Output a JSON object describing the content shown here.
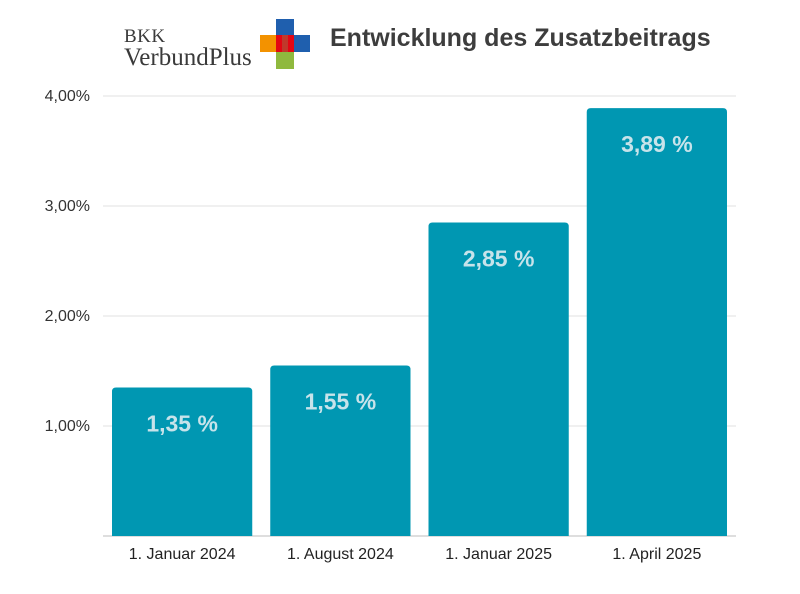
{
  "brand": {
    "line1": "BKK",
    "line2": "VerbundPlus",
    "logo_icon": "cross-plus-icon"
  },
  "colors": {
    "bar": "#0097b2",
    "grid": "#e2e2e2",
    "baseline": "#bdbdbd",
    "data_label": "#c7e3ea",
    "logo_orange": "#f39200",
    "logo_red": "#e30613",
    "logo_blue": "#1f5fae",
    "logo_green": "#8fb93e"
  },
  "chart_data": {
    "type": "bar",
    "title": "Entwicklung des Zusatzbeitrags",
    "xlabel": "",
    "ylabel": "",
    "categories": [
      "1. Januar 2024",
      "1. August 2024",
      "1. Januar 2025",
      "1. April 2025"
    ],
    "values": [
      1.35,
      1.55,
      2.85,
      3.89
    ],
    "data_labels": [
      "1,35 %",
      "1,55 %",
      "2,85 %",
      "3,89 %"
    ],
    "ylim": [
      0,
      4
    ],
    "yticks": [
      1,
      2,
      3,
      4
    ],
    "ytick_labels": [
      "1,00%",
      "2,00%",
      "3,00%",
      "4,00%"
    ],
    "grid": true,
    "legend": "none"
  }
}
